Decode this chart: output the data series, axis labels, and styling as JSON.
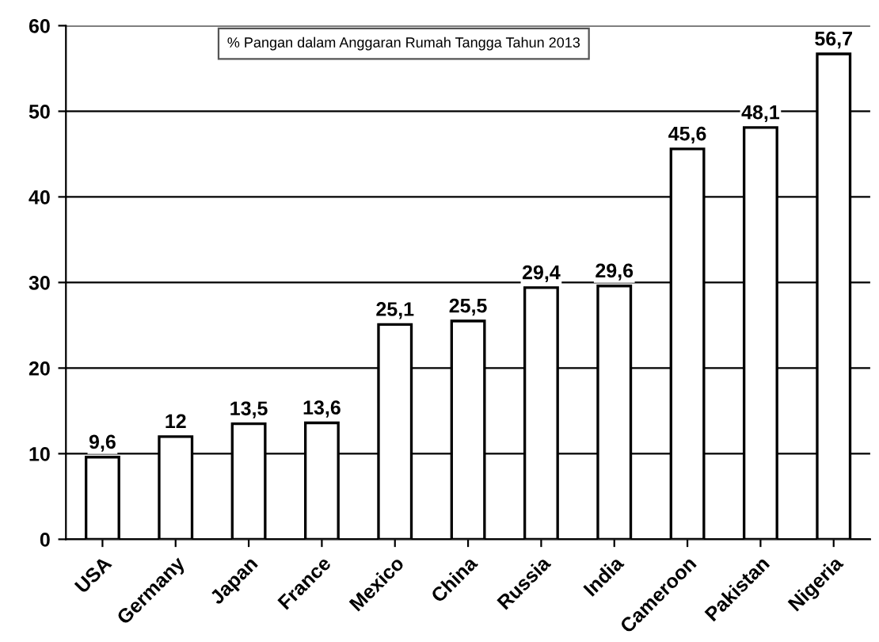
{
  "chart_data": {
    "type": "bar",
    "title": "% Pangan dalam Anggaran Rumah Tangga Tahun 2013",
    "categories": [
      "USA",
      "Germany",
      "Japan",
      "France",
      "Mexico",
      "China",
      "Russia",
      "India",
      "Cameroon",
      "Pakistan",
      "Nigeria"
    ],
    "values": [
      9.6,
      12,
      13.5,
      13.6,
      25.1,
      25.5,
      29.4,
      29.6,
      45.6,
      48.1,
      56.7
    ],
    "value_labels": [
      "9,6",
      "12",
      "13,5",
      "13,6",
      "25,1",
      "25,5",
      "29,4",
      "29,6",
      "45,6",
      "48,1",
      "56,7"
    ],
    "color": "#ffffff",
    "ylim": [
      0,
      60
    ],
    "yticks": [
      0,
      10,
      20,
      30,
      40,
      50,
      60
    ],
    "grid": "y"
  }
}
